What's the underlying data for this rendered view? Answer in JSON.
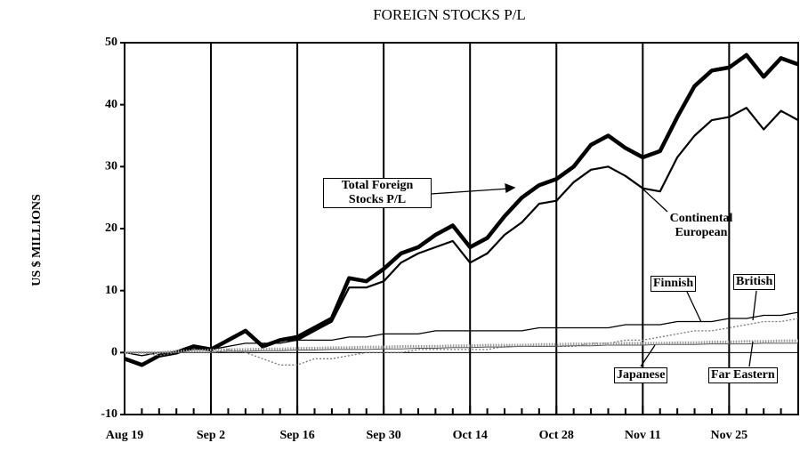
{
  "chart_data": {
    "type": "line",
    "title": "FOREIGN STOCKS P/L",
    "y_label": "US $ MILLIONS",
    "categories": [
      "Aug 19",
      null,
      null,
      null,
      null,
      "Sep 2",
      null,
      null,
      null,
      null,
      "Sep 16",
      null,
      null,
      null,
      null,
      "Sep 30",
      null,
      null,
      null,
      null,
      "Oct 14",
      null,
      null,
      null,
      null,
      "Oct 28",
      null,
      null,
      null,
      null,
      "Nov 11",
      null,
      null,
      null,
      null,
      "Nov 25",
      null,
      null,
      null,
      null
    ],
    "ylim": [
      -10,
      50
    ],
    "yticks": [
      -10,
      0,
      10,
      20,
      30,
      40,
      50
    ],
    "grid": true,
    "series": [
      {
        "name": "Total Foreign Stocks P/L",
        "color": "#000000",
        "values": [
          -1,
          -2,
          -0.5,
          0,
          1,
          0.5,
          2,
          3.5,
          1,
          2,
          2.5,
          4,
          5.5,
          12,
          11.5,
          13.5,
          16,
          17,
          19,
          20.5,
          17,
          18.5,
          22,
          25,
          27,
          28,
          30,
          33.5,
          35,
          33,
          31.5,
          32.5,
          38,
          43,
          45.5,
          46,
          48,
          44.5,
          47.5,
          46.5
        ]
      },
      {
        "name": "Continental European",
        "color": "#000000",
        "values": [
          -1,
          -2,
          -0.5,
          0,
          1,
          0.5,
          2,
          3.5,
          1,
          2,
          2,
          3.5,
          5,
          10.5,
          10.5,
          11.5,
          14.5,
          16,
          17,
          18,
          14.5,
          16,
          19,
          21,
          24,
          24.5,
          27.5,
          29.5,
          30,
          28.5,
          26.5,
          26,
          31.5,
          35,
          37.5,
          38,
          39.5,
          36,
          39,
          37.5
        ]
      },
      {
        "name": "Finnish",
        "color": "#000000",
        "values": [
          0,
          -0.5,
          0,
          0,
          0.5,
          0.5,
          1,
          1.5,
          1.5,
          1.5,
          2,
          2,
          2,
          2.5,
          2.5,
          3,
          3,
          3,
          3.5,
          3.5,
          3.5,
          3.5,
          3.5,
          3.5,
          4,
          4,
          4,
          4,
          4,
          4.5,
          4.5,
          4.5,
          5,
          5,
          5,
          5.5,
          5.5,
          6,
          6,
          6.5
        ]
      },
      {
        "name": "British",
        "color": "#777777",
        "values": [
          0,
          0,
          -0.5,
          0,
          0,
          0,
          0.5,
          0,
          -1,
          -2,
          -2,
          -1,
          -1,
          -0.5,
          0,
          0,
          0,
          0.5,
          0.5,
          0.5,
          0.5,
          0.5,
          1,
          1,
          1,
          1,
          1,
          1.5,
          1.5,
          2,
          2,
          2.5,
          3,
          3.5,
          3.5,
          4,
          4.5,
          5,
          5,
          5.5
        ]
      },
      {
        "name": "Japanese",
        "color": "#555555",
        "values": [
          0,
          0,
          0,
          0,
          0,
          0,
          0.2,
          0.2,
          0.3,
          0.3,
          0.4,
          0.4,
          0.5,
          0.5,
          0.5,
          0.6,
          0.6,
          0.7,
          0.7,
          0.8,
          0.8,
          0.9,
          0.9,
          1,
          1,
          1,
          1.1,
          1.1,
          1.2,
          1.2,
          1.2,
          1.3,
          1.3,
          1.3,
          1.4,
          1.4,
          1.4,
          1.5,
          1.5,
          1.5
        ]
      },
      {
        "name": "Far Eastern",
        "color": "#999999",
        "values": [
          0,
          0,
          0,
          0.2,
          0.3,
          0.4,
          0.5,
          0.5,
          0.6,
          0.6,
          0.7,
          0.7,
          0.8,
          0.8,
          0.9,
          0.9,
          1,
          1,
          1,
          1.1,
          1.1,
          1.2,
          1.2,
          1.2,
          1.3,
          1.3,
          1.4,
          1.4,
          1.4,
          1.5,
          1.5,
          1.5,
          1.6,
          1.6,
          1.7,
          1.7,
          1.8,
          1.8,
          1.9,
          1.9
        ]
      }
    ]
  }
}
